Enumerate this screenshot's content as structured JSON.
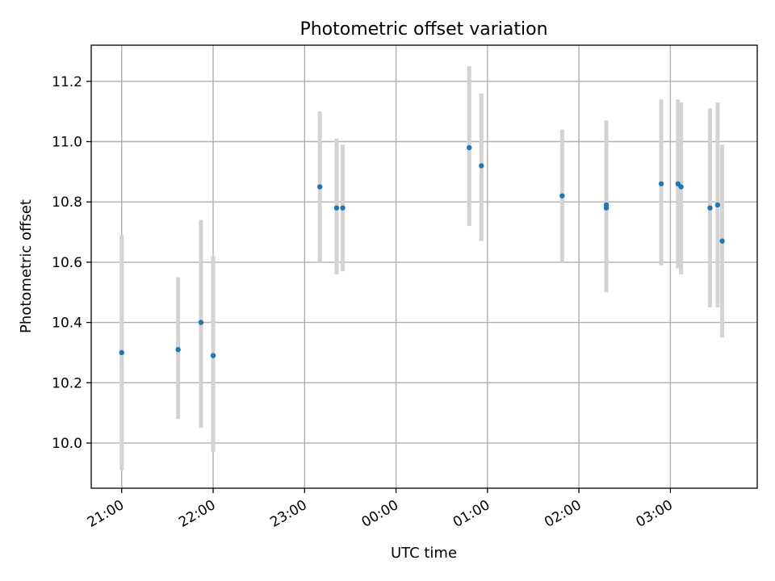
{
  "chart_data": {
    "type": "scatter",
    "title": "Photometric offset variation",
    "xlabel": "UTC time",
    "ylabel": "Photometric offset",
    "grid": true,
    "x_axis_kind": "time",
    "xlim": [
      "20:40",
      "03:57"
    ],
    "ylim": [
      9.85,
      11.32
    ],
    "x_ticks": [
      "21:00",
      "22:00",
      "23:00",
      "00:00",
      "01:00",
      "02:00",
      "03:00"
    ],
    "y_ticks": [
      "10.0",
      "10.2",
      "10.4",
      "10.6",
      "10.8",
      "11.0",
      "11.2"
    ],
    "marker_color": "#1f77b4",
    "errorbar_color": "#d3d3d3",
    "series": [
      {
        "points": [
          {
            "x": "21:00",
            "y": 10.3,
            "ylow": 9.91,
            "yhigh": 10.69
          },
          {
            "x": "21:37",
            "y": 10.31,
            "ylow": 10.08,
            "yhigh": 10.55
          },
          {
            "x": "21:52",
            "y": 10.4,
            "ylow": 10.05,
            "yhigh": 10.74
          },
          {
            "x": "22:00",
            "y": 10.29,
            "ylow": 9.97,
            "yhigh": 10.62
          },
          {
            "x": "23:10",
            "y": 10.85,
            "ylow": 10.6,
            "yhigh": 11.1
          },
          {
            "x": "23:21",
            "y": 10.78,
            "ylow": 10.56,
            "yhigh": 11.01
          },
          {
            "x": "23:25",
            "y": 10.78,
            "ylow": 10.57,
            "yhigh": 10.99
          },
          {
            "x": "00:48",
            "y": 10.98,
            "ylow": 10.72,
            "yhigh": 11.25
          },
          {
            "x": "00:56",
            "y": 10.92,
            "ylow": 10.67,
            "yhigh": 11.16
          },
          {
            "x": "01:49",
            "y": 10.82,
            "ylow": 10.6,
            "yhigh": 11.04
          },
          {
            "x": "02:18",
            "y": 10.78,
            "ylow": 10.5,
            "yhigh": 11.06
          },
          {
            "x": "02:18",
            "y": 10.79,
            "ylow": 10.52,
            "yhigh": 11.07
          },
          {
            "x": "02:54",
            "y": 10.86,
            "ylow": 10.59,
            "yhigh": 11.14
          },
          {
            "x": "03:05",
            "y": 10.86,
            "ylow": 10.58,
            "yhigh": 11.14
          },
          {
            "x": "03:07",
            "y": 10.85,
            "ylow": 10.56,
            "yhigh": 11.13
          },
          {
            "x": "03:26",
            "y": 10.78,
            "ylow": 10.45,
            "yhigh": 11.11
          },
          {
            "x": "03:31",
            "y": 10.79,
            "ylow": 10.45,
            "yhigh": 11.13
          },
          {
            "x": "03:34",
            "y": 10.67,
            "ylow": 10.35,
            "yhigh": 10.99
          }
        ]
      }
    ]
  }
}
